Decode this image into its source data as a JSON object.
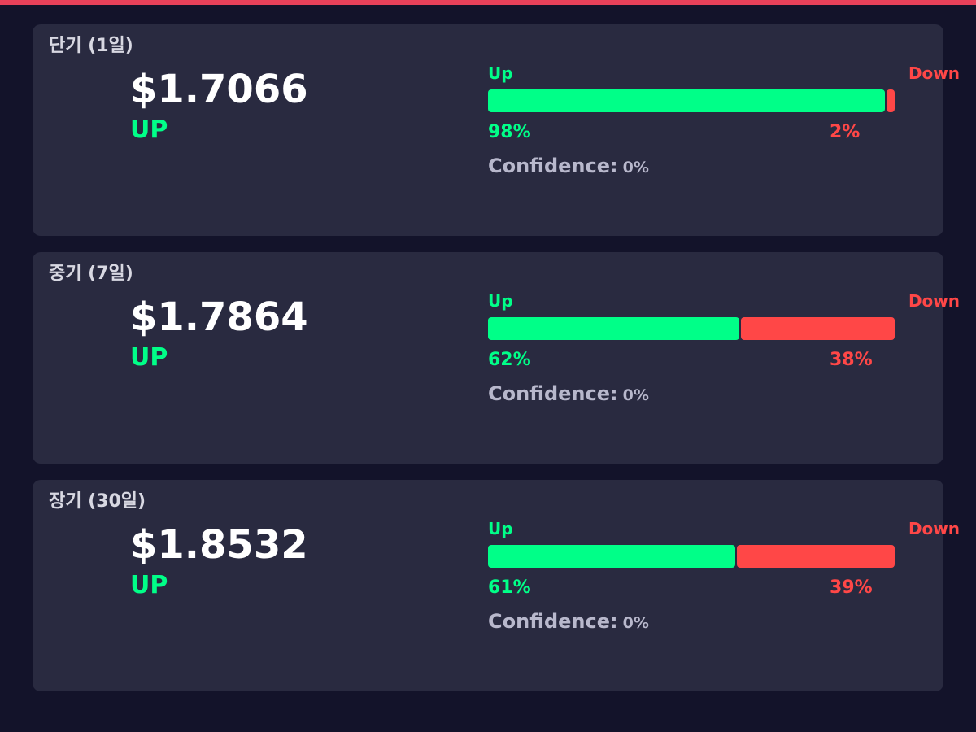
{
  "forecasts": [
    {
      "title": "단기 (1일)",
      "price": "$1.7066",
      "direction": "UP",
      "up_label": "Up",
      "down_label": "Down",
      "up": {
        "value": 98,
        "label": "98%"
      },
      "down": {
        "value": 2,
        "label": "2%"
      },
      "confidence_label": "Confidence:",
      "confidence": {
        "value": 0,
        "label": "0%"
      }
    },
    {
      "title": "중기 (7일)",
      "price": "$1.7864",
      "direction": "UP",
      "up_label": "Up",
      "down_label": "Down",
      "up": {
        "value": 62,
        "label": "62%"
      },
      "down": {
        "value": 38,
        "label": "38%"
      },
      "confidence_label": "Confidence:",
      "confidence": {
        "value": 0,
        "label": "0%"
      }
    },
    {
      "title": "장기 (30일)",
      "price": "$1.8532",
      "direction": "UP",
      "up_label": "Up",
      "down_label": "Down",
      "up": {
        "value": 61,
        "label": "61%"
      },
      "down": {
        "value": 39,
        "label": "39%"
      },
      "confidence_label": "Confidence:",
      "confidence": {
        "value": 0,
        "label": "0%"
      }
    }
  ]
}
